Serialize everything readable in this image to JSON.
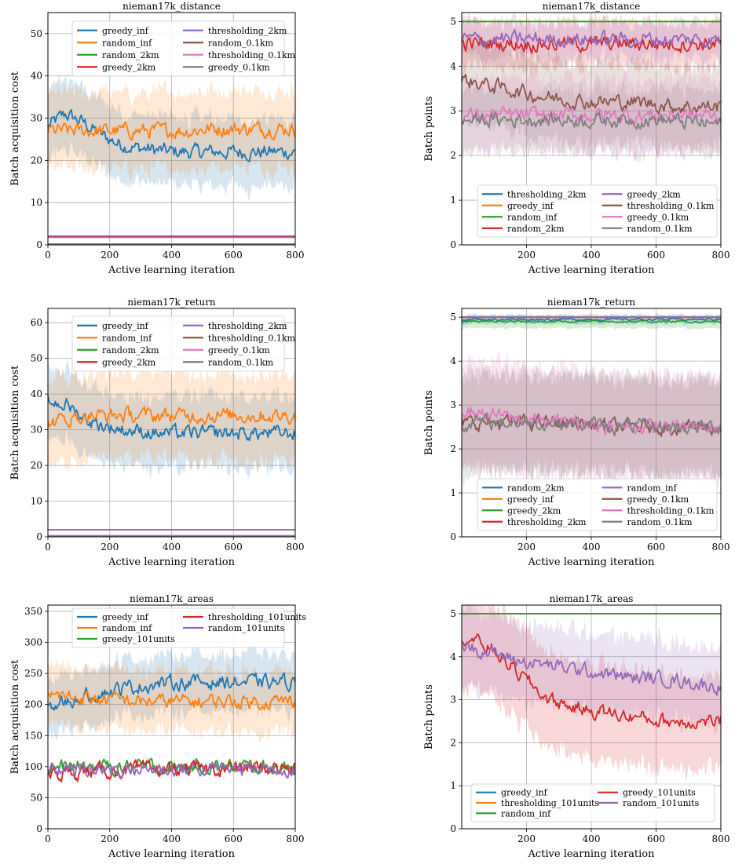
{
  "colors": {
    "blue": "#1f77b4",
    "orange": "#ff7f0e",
    "green": "#2ca02c",
    "red": "#d62728",
    "purple": "#9467bd",
    "brown": "#8c564b",
    "pink": "#e377c2",
    "gray": "#7f7f7f"
  },
  "chart_data": [
    {
      "type": "line",
      "title": "nieman17k_distance",
      "xlabel": "Active learning iteration",
      "ylabel": "Batch acquisition cost",
      "xlim": [
        0,
        800
      ],
      "ylim": [
        0,
        55
      ],
      "xticks": [
        0,
        200,
        400,
        600,
        800
      ],
      "yticks": [
        0,
        10,
        20,
        30,
        40,
        50
      ],
      "grid": true,
      "legend": {
        "placement": "top-center",
        "columns": 2,
        "order": [
          "greedy_inf",
          "thresholding_2km",
          "random_inf",
          "random_0.1km",
          "random_2km",
          "thresholding_0.1km",
          "greedy_2km",
          "greedy_0.1km"
        ]
      },
      "series": [
        {
          "name": "greedy_inf",
          "color": "blue",
          "mean": [
            28,
            31,
            29,
            26,
            24,
            23,
            22.5,
            22,
            22,
            22,
            22,
            22,
            22,
            22,
            22
          ],
          "band": 8
        },
        {
          "name": "random_inf",
          "color": "orange",
          "mean": [
            27,
            27,
            27,
            27,
            27,
            27,
            27,
            27,
            27,
            27.5,
            27.5,
            27.5,
            27.5,
            27.5,
            27.5
          ],
          "band": 9
        },
        {
          "name": "random_2km",
          "color": "green",
          "mean": [
            2
          ],
          "band": 0
        },
        {
          "name": "greedy_2km",
          "color": "red",
          "mean": [
            2
          ],
          "band": 0
        },
        {
          "name": "thresholding_2km",
          "color": "purple",
          "mean": [
            1.8
          ],
          "band": 0
        },
        {
          "name": "random_0.1km",
          "color": "brown",
          "mean": [
            0.2
          ],
          "band": 0
        },
        {
          "name": "thresholding_0.1km",
          "color": "pink",
          "mean": [
            0.15
          ],
          "band": 0
        },
        {
          "name": "greedy_0.1km",
          "color": "gray",
          "mean": [
            0.1
          ],
          "band": 0
        }
      ]
    },
    {
      "type": "line",
      "title": "nieman17k_distance",
      "xlabel": "Active learning iteration",
      "ylabel": "Batch points",
      "xlim": [
        0,
        800
      ],
      "ylim": [
        0,
        5.2
      ],
      "xticks": [
        200,
        400,
        600,
        800
      ],
      "yticks": [
        0,
        1,
        2,
        3,
        4,
        5
      ],
      "grid": true,
      "legend": {
        "placement": "lower-center",
        "columns": 2,
        "order": [
          "thresholding_2km",
          "greedy_2km",
          "greedy_inf",
          "thresholding_0.1km",
          "random_inf",
          "greedy_0.1km",
          "random_2km",
          "random_0.1km"
        ]
      },
      "series": [
        {
          "name": "thresholding_2km",
          "color": "blue",
          "mean": [
            5
          ],
          "band": 0
        },
        {
          "name": "greedy_inf",
          "color": "orange",
          "mean": [
            5
          ],
          "band": 0
        },
        {
          "name": "random_inf",
          "color": "green",
          "mean": [
            5
          ],
          "band": 0
        },
        {
          "name": "random_2km",
          "color": "red",
          "mean": [
            4.5,
            4.5,
            4.5,
            4.5
          ],
          "band": 0.5
        },
        {
          "name": "greedy_2km",
          "color": "purple",
          "mean": [
            4.6,
            4.6,
            4.6,
            4.6
          ],
          "band": 0.4
        },
        {
          "name": "thresholding_0.1km",
          "color": "brown",
          "mean": [
            3.7,
            3.5,
            3.3,
            3.2,
            3.2,
            3.1,
            3.1
          ],
          "band": 0.9
        },
        {
          "name": "greedy_0.1km",
          "color": "pink",
          "mean": [
            2.9,
            2.9,
            2.9,
            2.9,
            2.9
          ],
          "band": 0.8
        },
        {
          "name": "random_0.1km",
          "color": "gray",
          "mean": [
            2.8,
            2.8,
            2.8,
            2.8,
            2.7
          ],
          "band": 0.7
        }
      ]
    },
    {
      "type": "line",
      "title": "nieman17k_return",
      "xlabel": "Active learning iteration",
      "ylabel": "Batch acquisition cost",
      "xlim": [
        0,
        800
      ],
      "ylim": [
        0,
        64
      ],
      "xticks": [
        0,
        200,
        400,
        600,
        800
      ],
      "yticks": [
        0,
        10,
        20,
        30,
        40,
        50,
        60
      ],
      "grid": true,
      "legend": {
        "placement": "top-center",
        "columns": 2,
        "order": [
          "greedy_inf",
          "thresholding_2km",
          "random_inf",
          "thresholding_0.1km",
          "random_2km",
          "greedy_0.1km",
          "greedy_2km",
          "random_0.1km"
        ]
      },
      "series": [
        {
          "name": "greedy_inf",
          "color": "blue",
          "mean": [
            38,
            37,
            33,
            31,
            30,
            29.5,
            29,
            29,
            29,
            29,
            29,
            29,
            29,
            29
          ],
          "band": 10
        },
        {
          "name": "random_inf",
          "color": "orange",
          "mean": [
            32,
            33,
            34,
            34,
            34,
            34,
            34,
            34,
            34,
            34,
            34,
            34,
            34,
            34
          ],
          "band": 12
        },
        {
          "name": "random_2km",
          "color": "green",
          "mean": [
            2
          ],
          "band": 0
        },
        {
          "name": "greedy_2km",
          "color": "red",
          "mean": [
            2
          ],
          "band": 0
        },
        {
          "name": "thresholding_2km",
          "color": "purple",
          "mean": [
            2
          ],
          "band": 0
        },
        {
          "name": "thresholding_0.1km",
          "color": "brown",
          "mean": [
            0.3
          ],
          "band": 0
        },
        {
          "name": "greedy_0.1km",
          "color": "pink",
          "mean": [
            0.2
          ],
          "band": 0
        },
        {
          "name": "random_0.1km",
          "color": "gray",
          "mean": [
            0.1
          ],
          "band": 0
        }
      ]
    },
    {
      "type": "line",
      "title": "nieman17k_return",
      "xlabel": "Active learning iteration",
      "ylabel": "Batch points",
      "xlim": [
        0,
        800
      ],
      "ylim": [
        0,
        5.2
      ],
      "xticks": [
        200,
        400,
        600,
        800
      ],
      "yticks": [
        0,
        1,
        2,
        3,
        4,
        5
      ],
      "grid": true,
      "legend": {
        "placement": "lower-center",
        "columns": 2,
        "order": [
          "random_2km",
          "random_inf",
          "greedy_inf",
          "greedy_0.1km",
          "greedy_2km",
          "thresholding_0.1km",
          "thresholding_2km",
          "random_0.1km"
        ]
      },
      "series": [
        {
          "name": "random_2km",
          "color": "blue",
          "mean": [
            4.95
          ],
          "band": 0.1
        },
        {
          "name": "greedy_inf",
          "color": "orange",
          "mean": [
            5
          ],
          "band": 0
        },
        {
          "name": "greedy_2km",
          "color": "green",
          "mean": [
            4.9
          ],
          "band": 0.15
        },
        {
          "name": "thresholding_2km",
          "color": "red",
          "mean": [
            5
          ],
          "band": 0
        },
        {
          "name": "random_inf",
          "color": "purple",
          "mean": [
            5
          ],
          "band": 0
        },
        {
          "name": "greedy_0.1km",
          "color": "brown",
          "mean": [
            2.6,
            2.6,
            2.6,
            2.5,
            2.5,
            2.5
          ],
          "band": 1.1
        },
        {
          "name": "thresholding_0.1km",
          "color": "pink",
          "mean": [
            2.9,
            2.7,
            2.6,
            2.5,
            2.5,
            2.5
          ],
          "band": 1.2
        },
        {
          "name": "random_0.1km",
          "color": "gray",
          "mean": [
            2.6,
            2.6,
            2.6,
            2.5,
            2.5,
            2.5
          ],
          "band": 1.1
        }
      ]
    },
    {
      "type": "line",
      "title": "nieman17k_areas",
      "xlabel": "Active learning iteration",
      "ylabel": "Batch acquisition cost",
      "xlim": [
        0,
        800
      ],
      "ylim": [
        0,
        360
      ],
      "xticks": [
        0,
        200,
        400,
        600,
        800
      ],
      "yticks": [
        0,
        50,
        100,
        150,
        200,
        250,
        300,
        350
      ],
      "grid": true,
      "legend": {
        "placement": "top-center",
        "columns": 2,
        "order": [
          "greedy_inf",
          "thresholding_101units",
          "random_inf",
          "random_101units",
          "greedy_101units"
        ]
      },
      "series": [
        {
          "name": "greedy_inf",
          "color": "blue",
          "mean": [
            195,
            205,
            215,
            222,
            228,
            232,
            235,
            236,
            236,
            236,
            236,
            236,
            236
          ],
          "band": 45
        },
        {
          "name": "random_inf",
          "color": "orange",
          "mean": [
            215,
            212,
            210,
            208,
            206,
            205,
            205,
            205,
            205,
            205,
            205,
            205,
            205
          ],
          "band": 48
        },
        {
          "name": "greedy_101units",
          "color": "green",
          "mean": [
            98,
            99,
            99,
            99,
            99,
            99,
            99
          ],
          "band": 3
        },
        {
          "name": "thresholding_101units",
          "color": "red",
          "mean": [
            87,
            92,
            94,
            95,
            96,
            97,
            98
          ],
          "band": 4
        },
        {
          "name": "random_101units",
          "color": "purple",
          "mean": [
            95,
            96,
            96,
            96,
            97,
            97,
            97
          ],
          "band": 3
        }
      ]
    },
    {
      "type": "line",
      "title": "nieman17k_areas",
      "xlabel": "Active learning iteration",
      "ylabel": "Batch points",
      "xlim": [
        0,
        800
      ],
      "ylim": [
        0,
        5.2
      ],
      "xticks": [
        200,
        400,
        600,
        800
      ],
      "yticks": [
        0,
        1,
        2,
        3,
        4,
        5
      ],
      "grid": true,
      "legend": {
        "placement": "lower-center",
        "columns": 2,
        "order": [
          "greedy_inf",
          "greedy_101units",
          "thresholding_101units",
          "random_101units",
          "random_inf"
        ]
      },
      "series": [
        {
          "name": "greedy_inf",
          "color": "blue",
          "mean": [
            5
          ],
          "band": 0
        },
        {
          "name": "thresholding_101units",
          "color": "orange",
          "mean": [
            5
          ],
          "band": 0
        },
        {
          "name": "random_inf",
          "color": "green",
          "mean": [
            5
          ],
          "band": 0
        },
        {
          "name": "greedy_101units",
          "color": "red",
          "mean": [
            4.5,
            4.2,
            3.6,
            3.0,
            2.8,
            2.7,
            2.6,
            2.5,
            2.5,
            2.5
          ],
          "band": 1.1
        },
        {
          "name": "random_101units",
          "color": "purple",
          "mean": [
            4.3,
            4.1,
            3.9,
            3.8,
            3.7,
            3.6,
            3.5,
            3.5,
            3.4,
            3.3
          ],
          "band": 0.9
        }
      ]
    }
  ]
}
